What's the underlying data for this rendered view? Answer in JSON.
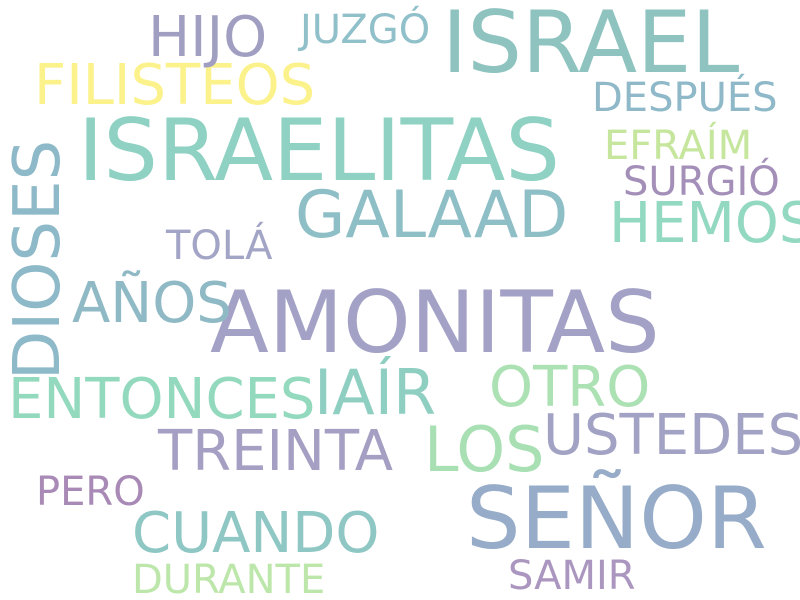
{
  "words": {
    "israel": {
      "text": "ISRAEL",
      "color": "#8ec3c0"
    },
    "israelitas": {
      "text": "ISRAELITAS",
      "color": "#8fd1c2"
    },
    "amonitas": {
      "text": "AMONITAS",
      "color": "#a3a2c6"
    },
    "senor": {
      "text": "SEÑOR",
      "color": "#97acc8"
    },
    "galaad": {
      "text": "GALAAD",
      "color": "#8fbfc6"
    },
    "dioses": {
      "text": "DIOSES",
      "color": "#8eb9c8"
    },
    "filisteos": {
      "text": "FILISTEOS",
      "color": "#fbf28c"
    },
    "entonces": {
      "text": "ENTONCES",
      "color": "#93d9bd"
    },
    "iair": {
      "text": "IAÍR",
      "color": "#8fcfc2"
    },
    "los": {
      "text": "LOS",
      "color": "#a8e0b4"
    },
    "treinta": {
      "text": "TREINTA",
      "color": "#a49fc3"
    },
    "ustedes": {
      "text": "USTEDES",
      "color": "#a2a2c4"
    },
    "cuando": {
      "text": "CUANDO",
      "color": "#8ec7c3"
    },
    "hijo": {
      "text": "HIJO",
      "color": "#a09fc2"
    },
    "anos": {
      "text": "AÑOS",
      "color": "#8fb9c5"
    },
    "otro": {
      "text": "OTRO",
      "color": "#ace1b3"
    },
    "hemos": {
      "text": "HEMOS",
      "color": "#93d8c0"
    },
    "juzgo": {
      "text": "JUZGÓ",
      "color": "#90c0c9"
    },
    "despues": {
      "text": "DESPUÉS",
      "color": "#8fb9c8"
    },
    "efraim": {
      "text": "EFRAÍM",
      "color": "#c6e69e"
    },
    "surgio": {
      "text": "SURGIÓ",
      "color": "#a48fb9"
    },
    "tola": {
      "text": "TOLÁ",
      "color": "#a3a5c6"
    },
    "pero": {
      "text": "PERO",
      "color": "#a98ab6"
    },
    "durante": {
      "text": "DURANTE",
      "color": "#bde7aa"
    },
    "samir": {
      "text": "SAMIR",
      "color": "#ab96c0"
    }
  }
}
